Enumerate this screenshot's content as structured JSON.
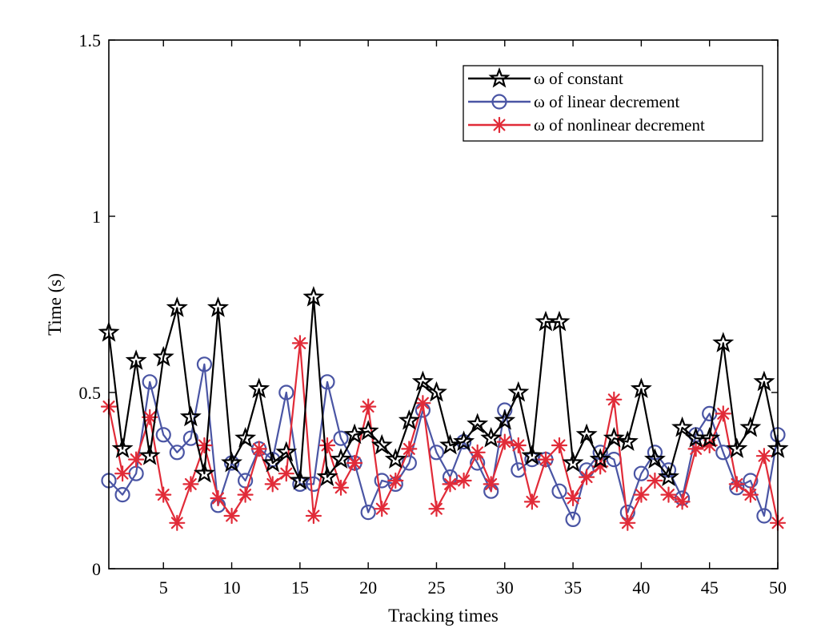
{
  "chart_data": {
    "type": "line",
    "title": "",
    "xlabel": "Tracking times",
    "ylabel": "Time (s)",
    "xlim": [
      1,
      50
    ],
    "ylim": [
      0,
      1.5
    ],
    "xticks": [
      5,
      10,
      15,
      20,
      25,
      30,
      35,
      40,
      45,
      50
    ],
    "yticks": [
      0,
      0.5,
      1,
      1.5
    ],
    "ytick_labels": [
      "0",
      "0.5",
      "1",
      "1.5"
    ],
    "grid": false,
    "legend_position": "top-right",
    "x": [
      1,
      2,
      3,
      4,
      5,
      6,
      7,
      8,
      9,
      10,
      11,
      12,
      13,
      14,
      15,
      16,
      17,
      18,
      19,
      20,
      21,
      22,
      23,
      24,
      25,
      26,
      27,
      28,
      29,
      30,
      31,
      32,
      33,
      34,
      35,
      36,
      37,
      38,
      39,
      40,
      41,
      42,
      43,
      44,
      45,
      46,
      47,
      48,
      49,
      50
    ],
    "series": [
      {
        "name": "ω of constant",
        "color": "#000000",
        "marker": "star",
        "values": [
          0.67,
          0.34,
          0.59,
          0.32,
          0.6,
          0.74,
          0.43,
          0.27,
          0.74,
          0.3,
          0.37,
          0.51,
          0.3,
          0.33,
          0.25,
          0.77,
          0.26,
          0.31,
          0.38,
          0.39,
          0.35,
          0.31,
          0.42,
          0.53,
          0.5,
          0.35,
          0.36,
          0.41,
          0.37,
          0.42,
          0.5,
          0.32,
          0.7,
          0.7,
          0.3,
          0.38,
          0.31,
          0.37,
          0.36,
          0.51,
          0.31,
          0.26,
          0.4,
          0.37,
          0.37,
          0.64,
          0.34,
          0.4,
          0.53,
          0.34
        ]
      },
      {
        "name": "ω of linear decrement",
        "color": "#4a55a4",
        "marker": "circle",
        "values": [
          0.25,
          0.21,
          0.27,
          0.53,
          0.38,
          0.33,
          0.37,
          0.58,
          0.18,
          0.3,
          0.25,
          0.34,
          0.31,
          0.5,
          0.24,
          0.24,
          0.53,
          0.37,
          0.3,
          0.16,
          0.25,
          0.24,
          0.3,
          0.45,
          0.33,
          0.26,
          0.36,
          0.3,
          0.22,
          0.45,
          0.28,
          0.31,
          0.31,
          0.22,
          0.14,
          0.28,
          0.33,
          0.31,
          0.16,
          0.27,
          0.33,
          0.28,
          0.2,
          0.38,
          0.44,
          0.33,
          0.23,
          0.25,
          0.15,
          0.38
        ]
      },
      {
        "name": "ω of nonlinear decrement",
        "color": "#e12b38",
        "marker": "asterisk",
        "values": [
          0.46,
          0.27,
          0.31,
          0.43,
          0.21,
          0.13,
          0.24,
          0.35,
          0.2,
          0.15,
          0.21,
          0.34,
          0.24,
          0.27,
          0.64,
          0.15,
          0.35,
          0.23,
          0.3,
          0.46,
          0.17,
          0.25,
          0.34,
          0.47,
          0.17,
          0.24,
          0.25,
          0.33,
          0.24,
          0.36,
          0.35,
          0.19,
          0.31,
          0.35,
          0.2,
          0.26,
          0.29,
          0.48,
          0.13,
          0.21,
          0.25,
          0.21,
          0.19,
          0.34,
          0.35,
          0.44,
          0.24,
          0.21,
          0.32,
          0.13
        ]
      }
    ]
  }
}
